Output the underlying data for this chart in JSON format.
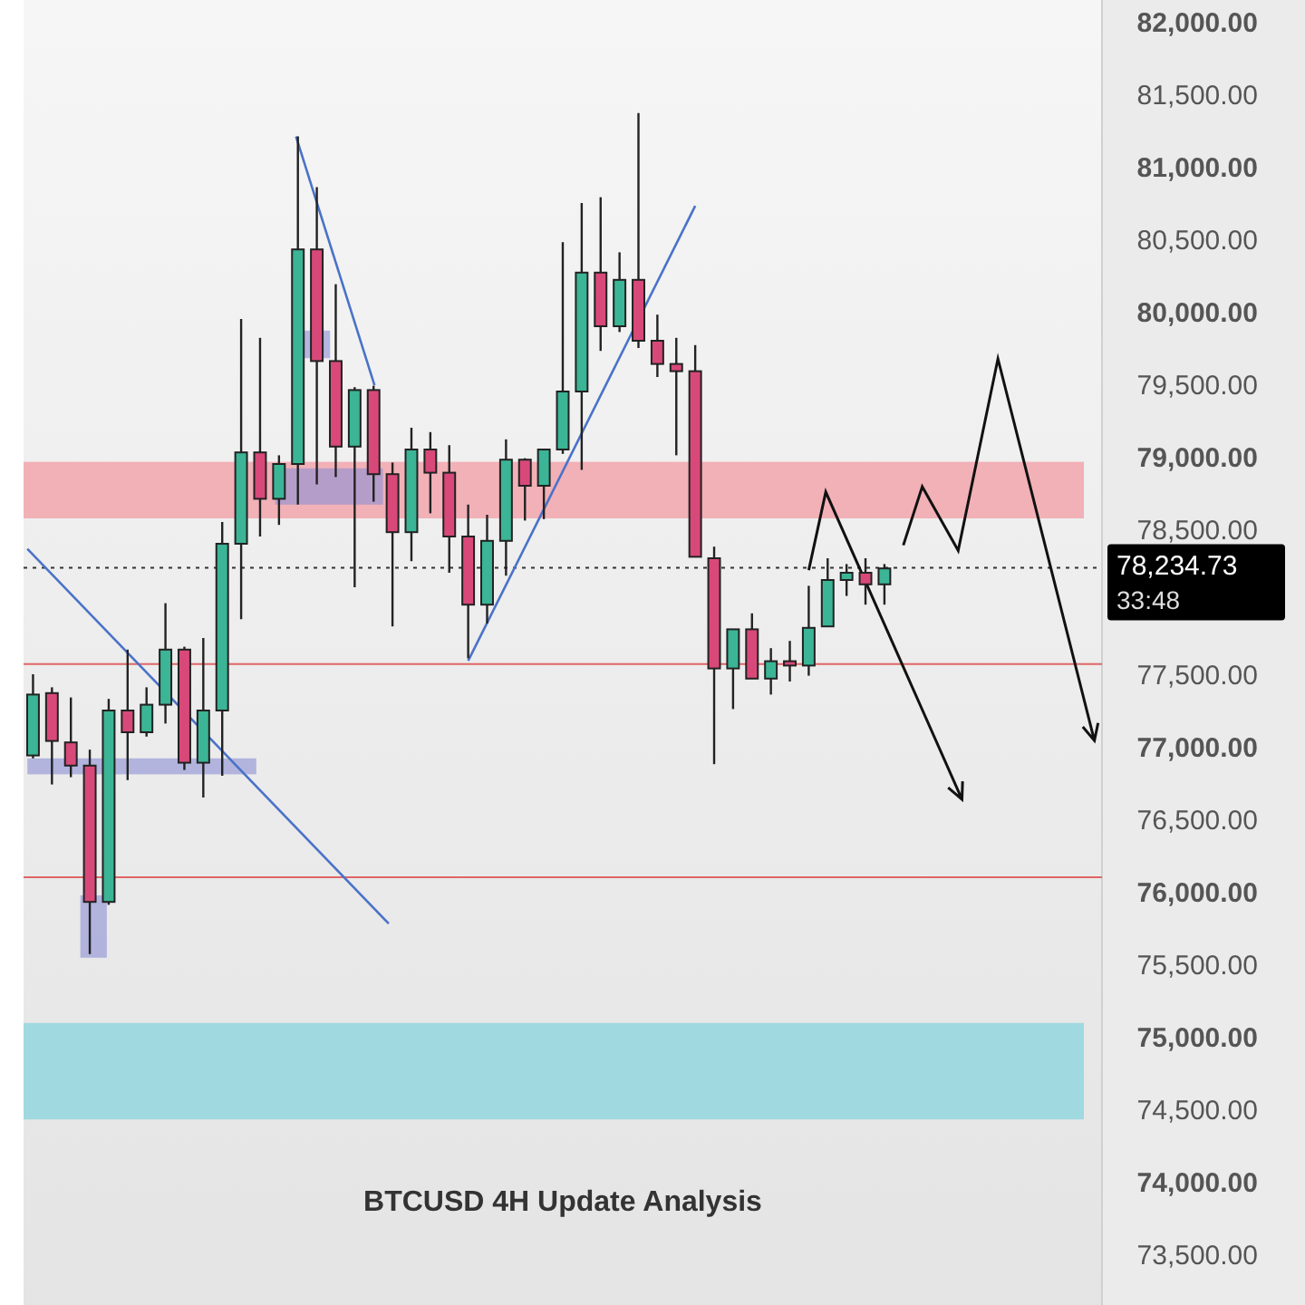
{
  "chart_data": {
    "type": "candlestick",
    "title": "BTCUSD 4H Update Analysis",
    "categories": [
      null,
      null,
      null,
      null,
      null,
      null,
      null,
      null,
      null,
      null,
      null,
      null,
      null,
      null,
      null,
      null,
      null,
      null,
      null,
      null,
      null,
      null,
      null,
      null,
      null,
      null,
      null,
      null,
      null,
      null,
      null,
      null,
      null,
      null,
      null,
      null,
      null,
      null,
      null,
      null,
      null,
      null,
      null,
      null,
      null,
      null,
      null,
      null,
      null,
      null,
      null,
      null,
      null,
      null,
      null,
      null,
      null
    ],
    "ohlc": [
      [
        76940,
        77500,
        76920,
        77360
      ],
      [
        77370,
        77410,
        76740,
        77040
      ],
      [
        77030,
        77340,
        76790,
        76870
      ],
      [
        76870,
        76980,
        75570,
        75930
      ],
      [
        75930,
        77330,
        75910,
        77250
      ],
      [
        77250,
        77670,
        76770,
        77100
      ],
      [
        77100,
        77410,
        77070,
        77290
      ],
      [
        77290,
        77990,
        77160,
        77670
      ],
      [
        77670,
        77690,
        76840,
        76890
      ],
      [
        76890,
        77750,
        76650,
        77250
      ],
      [
        77250,
        78550,
        76800,
        78400
      ],
      [
        78400,
        79950,
        77880,
        79030
      ],
      [
        79030,
        79820,
        78450,
        78710
      ],
      [
        78710,
        79010,
        78530,
        78950
      ],
      [
        78950,
        81210,
        78670,
        80430
      ],
      [
        80430,
        80860,
        78810,
        79660
      ],
      [
        79660,
        80190,
        78860,
        79070
      ],
      [
        79070,
        79480,
        78100,
        79460
      ],
      [
        79460,
        79490,
        78690,
        78880
      ],
      [
        78880,
        78960,
        77830,
        78480
      ],
      [
        78480,
        79200,
        78280,
        79050
      ],
      [
        79050,
        79170,
        78610,
        78890
      ],
      [
        78890,
        79080,
        78200,
        78450
      ],
      [
        78450,
        78670,
        77610,
        77980
      ],
      [
        77980,
        78600,
        77850,
        78420
      ],
      [
        78420,
        79120,
        78180,
        78980
      ],
      [
        78980,
        78990,
        78560,
        78800
      ],
      [
        78800,
        79050,
        78570,
        79050
      ],
      [
        79050,
        80480,
        79020,
        79450
      ],
      [
        79450,
        80750,
        78910,
        80270
      ],
      [
        80270,
        80790,
        79730,
        79900
      ],
      [
        79900,
        80410,
        79860,
        80220
      ],
      [
        80220,
        81370,
        79750,
        79800
      ],
      [
        79800,
        79980,
        79550,
        79640
      ],
      [
        79640,
        79820,
        79010,
        79590
      ],
      [
        79590,
        79770,
        78310,
        78310
      ],
      [
        78300,
        78380,
        76880,
        77540
      ],
      [
        77540,
        77810,
        77260,
        77810
      ],
      [
        77810,
        77920,
        77470,
        77470
      ],
      [
        77470,
        77680,
        77360,
        77590
      ],
      [
        77590,
        77730,
        77450,
        77560
      ],
      [
        77560,
        78110,
        77490,
        77820
      ],
      [
        77830,
        78300,
        77830,
        78150
      ],
      [
        78150,
        78260,
        78040,
        78200
      ],
      [
        78200,
        78300,
        77980,
        78120
      ],
      [
        78120,
        78260,
        77980,
        78230
      ],
      null,
      null,
      null,
      null,
      null,
      null,
      null,
      null,
      null,
      null,
      null
    ],
    "colors": [
      "#3bb595",
      "#d8497a",
      "#d8497a",
      "#d8497a",
      "#3bb595",
      "#d8497a",
      "#3bb595",
      "#3bb595",
      "#d8497a",
      "#3bb595",
      "#3bb595",
      "#3bb595",
      "#d8497a",
      "#3bb595",
      "#3bb595",
      "#d8497a",
      "#d8497a",
      "#3bb595",
      "#d8497a",
      "#d8497a",
      "#3bb595",
      "#d8497a",
      "#d8497a",
      "#d8497a",
      "#3bb595",
      "#3bb595",
      "#d8497a",
      "#3bb595",
      "#3bb595",
      "#3bb595",
      "#d8497a",
      "#3bb595",
      "#d8497a",
      "#d8497a",
      "#d8497a",
      "#d8497a",
      "#d8497a",
      "#3bb595",
      "#d8497a",
      "#3bb595",
      "#d8497a",
      "#3bb595",
      "#3bb595",
      "#3bb595",
      "#d8497a",
      "#3bb595",
      null,
      null,
      null,
      null,
      null,
      null,
      null,
      null,
      null,
      null,
      null
    ],
    "ylim": [
      73150,
      82150
    ],
    "yticks": [
      {
        "value": 73500,
        "label": "73,500.00"
      },
      {
        "value": 74000,
        "label": "74,000.00"
      },
      {
        "value": 74500,
        "label": "74,500.00"
      },
      {
        "value": 75000,
        "label": "75,000.00"
      },
      {
        "value": 75500,
        "label": "75,500.00"
      },
      {
        "value": 76000,
        "label": "76,000.00"
      },
      {
        "value": 76500,
        "label": "76,500.00"
      },
      {
        "value": 77000,
        "label": "77,000.00"
      },
      {
        "value": 77500,
        "label": "77,500.00"
      },
      {
        "value": 78500,
        "label": "78,500.00"
      },
      {
        "value": 79000,
        "label": "79,000.00"
      },
      {
        "value": 79500,
        "label": "79,500.00"
      },
      {
        "value": 80000,
        "label": "80,000.00"
      },
      {
        "value": 80500,
        "label": "80,500.00"
      },
      {
        "value": 81000,
        "label": "81,000.00"
      },
      {
        "value": 81500,
        "label": "81,500.00"
      },
      {
        "value": 82000,
        "label": "82,000.00"
      }
    ],
    "ref_lines": [
      {
        "axis": "y",
        "value": 77570,
        "color": "#e06666",
        "line_style": "solid"
      },
      {
        "axis": "y",
        "value": 76100,
        "color": "#e06666",
        "line_style": "solid"
      },
      {
        "axis": "y",
        "value": 78234.73,
        "label": "78,234.73",
        "color": "#333333",
        "line_style": "dotted"
      }
    ],
    "bands": [
      {
        "axis": "y",
        "from": 78575,
        "to": 78965,
        "color": "#f2a6ad"
      },
      {
        "axis": "y",
        "from": 74430,
        "to": 75095,
        "color": "#93d6de"
      }
    ],
    "annotations": [
      "33:48"
    ],
    "grid": false
  }
}
